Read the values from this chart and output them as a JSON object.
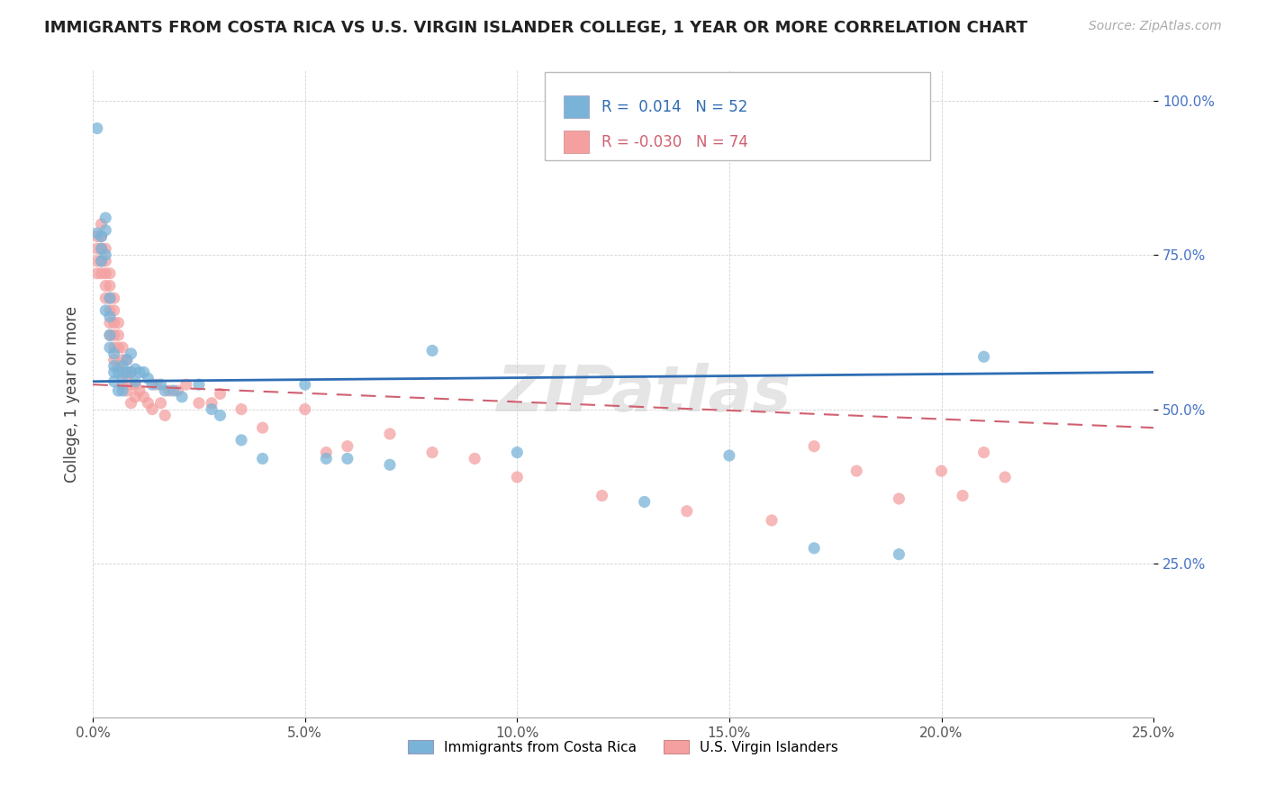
{
  "title": "IMMIGRANTS FROM COSTA RICA VS U.S. VIRGIN ISLANDER COLLEGE, 1 YEAR OR MORE CORRELATION CHART",
  "source_text": "Source: ZipAtlas.com",
  "ylabel": "College, 1 year or more",
  "xlim": [
    0.0,
    0.25
  ],
  "ylim": [
    0.0,
    1.05
  ],
  "xtick_labels": [
    "0.0%",
    "5.0%",
    "10.0%",
    "15.0%",
    "20.0%",
    "25.0%"
  ],
  "xtick_vals": [
    0.0,
    0.05,
    0.1,
    0.15,
    0.2,
    0.25
  ],
  "ytick_labels": [
    "25.0%",
    "50.0%",
    "75.0%",
    "100.0%"
  ],
  "ytick_vals": [
    0.25,
    0.5,
    0.75,
    1.0
  ],
  "legend_label1": "Immigrants from Costa Rica",
  "legend_label2": "U.S. Virgin Islanders",
  "color1": "#7ab3d8",
  "color2": "#f4a0a0",
  "line_color1": "#2e6db4",
  "line_color2": "#d06070",
  "watermark": "ZIPatlas",
  "r1": 0.014,
  "n1": 52,
  "r2": -0.03,
  "n2": 74,
  "costa_rica_x": [
    0.001,
    0.001,
    0.002,
    0.002,
    0.002,
    0.003,
    0.003,
    0.003,
    0.003,
    0.004,
    0.004,
    0.004,
    0.004,
    0.005,
    0.005,
    0.005,
    0.005,
    0.006,
    0.006,
    0.007,
    0.007,
    0.007,
    0.008,
    0.008,
    0.009,
    0.009,
    0.01,
    0.01,
    0.011,
    0.012,
    0.013,
    0.014,
    0.016,
    0.017,
    0.019,
    0.021,
    0.025,
    0.028,
    0.03,
    0.035,
    0.04,
    0.05,
    0.055,
    0.06,
    0.07,
    0.08,
    0.1,
    0.13,
    0.15,
    0.17,
    0.19,
    0.21
  ],
  "costa_rica_y": [
    0.955,
    0.785,
    0.78,
    0.76,
    0.74,
    0.81,
    0.79,
    0.75,
    0.66,
    0.68,
    0.65,
    0.62,
    0.6,
    0.59,
    0.57,
    0.56,
    0.545,
    0.56,
    0.53,
    0.57,
    0.55,
    0.53,
    0.58,
    0.56,
    0.59,
    0.56,
    0.565,
    0.545,
    0.56,
    0.56,
    0.55,
    0.54,
    0.54,
    0.53,
    0.53,
    0.52,
    0.54,
    0.5,
    0.49,
    0.45,
    0.42,
    0.54,
    0.42,
    0.42,
    0.41,
    0.595,
    0.43,
    0.35,
    0.425,
    0.275,
    0.265,
    0.585
  ],
  "virgin_x": [
    0.001,
    0.001,
    0.001,
    0.001,
    0.002,
    0.002,
    0.002,
    0.002,
    0.002,
    0.003,
    0.003,
    0.003,
    0.003,
    0.003,
    0.004,
    0.004,
    0.004,
    0.004,
    0.004,
    0.004,
    0.005,
    0.005,
    0.005,
    0.005,
    0.005,
    0.005,
    0.006,
    0.006,
    0.006,
    0.006,
    0.007,
    0.007,
    0.007,
    0.007,
    0.008,
    0.008,
    0.008,
    0.009,
    0.009,
    0.009,
    0.01,
    0.01,
    0.011,
    0.012,
    0.013,
    0.014,
    0.015,
    0.016,
    0.017,
    0.018,
    0.02,
    0.022,
    0.025,
    0.028,
    0.03,
    0.035,
    0.04,
    0.05,
    0.055,
    0.06,
    0.07,
    0.08,
    0.09,
    0.1,
    0.12,
    0.14,
    0.16,
    0.17,
    0.18,
    0.19,
    0.2,
    0.205,
    0.21,
    0.215
  ],
  "virgin_y": [
    0.78,
    0.76,
    0.74,
    0.72,
    0.8,
    0.78,
    0.76,
    0.74,
    0.72,
    0.76,
    0.74,
    0.72,
    0.7,
    0.68,
    0.72,
    0.7,
    0.68,
    0.66,
    0.64,
    0.62,
    0.68,
    0.66,
    0.64,
    0.62,
    0.6,
    0.58,
    0.64,
    0.62,
    0.6,
    0.57,
    0.6,
    0.58,
    0.56,
    0.54,
    0.58,
    0.555,
    0.53,
    0.56,
    0.54,
    0.51,
    0.54,
    0.52,
    0.53,
    0.52,
    0.51,
    0.5,
    0.54,
    0.51,
    0.49,
    0.53,
    0.53,
    0.54,
    0.51,
    0.51,
    0.525,
    0.5,
    0.47,
    0.5,
    0.43,
    0.44,
    0.46,
    0.43,
    0.42,
    0.39,
    0.36,
    0.335,
    0.32,
    0.44,
    0.4,
    0.355,
    0.4,
    0.36,
    0.43,
    0.39
  ]
}
